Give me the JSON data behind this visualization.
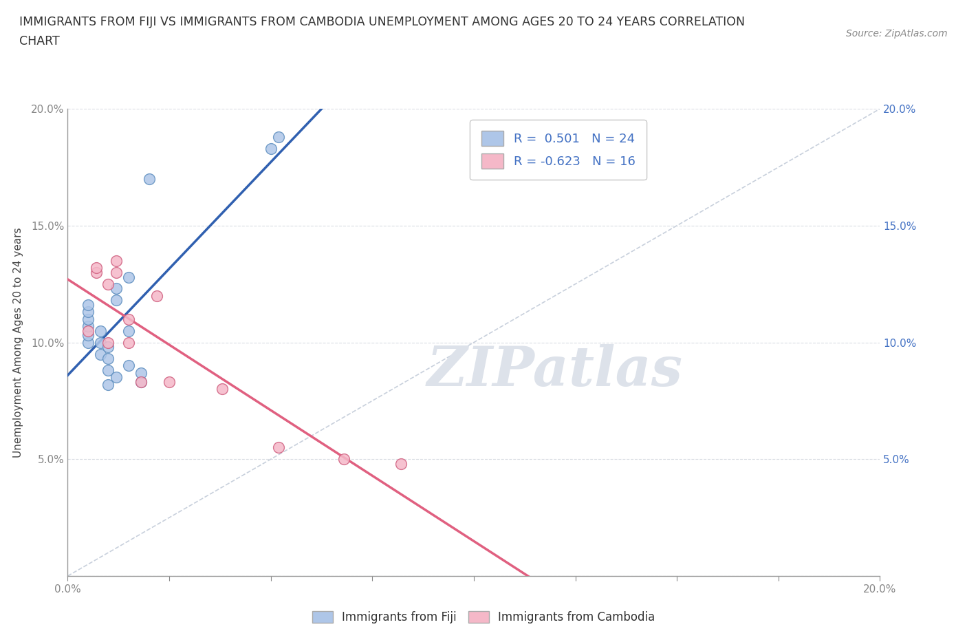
{
  "title_line1": "IMMIGRANTS FROM FIJI VS IMMIGRANTS FROM CAMBODIA UNEMPLOYMENT AMONG AGES 20 TO 24 YEARS CORRELATION",
  "title_line2": "CHART",
  "source": "Source: ZipAtlas.com",
  "ylabel": "Unemployment Among Ages 20 to 24 years",
  "xlim": [
    0.0,
    0.2
  ],
  "ylim": [
    0.0,
    0.2
  ],
  "xticks": [
    0.0,
    0.025,
    0.05,
    0.075,
    0.1,
    0.125,
    0.15,
    0.175,
    0.2
  ],
  "yticks": [
    0.0,
    0.05,
    0.1,
    0.15,
    0.2
  ],
  "fiji_color": "#aec6e8",
  "cambodia_color": "#f5b8c8",
  "fiji_edge": "#6090c0",
  "cambodia_edge": "#d06080",
  "trendline_fiji": "#3060b0",
  "trendline_cambodia": "#e06080",
  "diagonal_color": "#c8d0dc",
  "R_fiji": 0.501,
  "N_fiji": 24,
  "R_cambodia": -0.623,
  "N_cambodia": 16,
  "fiji_x": [
    0.005,
    0.005,
    0.005,
    0.005,
    0.005,
    0.005,
    0.008,
    0.008,
    0.008,
    0.01,
    0.01,
    0.01,
    0.01,
    0.012,
    0.012,
    0.012,
    0.015,
    0.015,
    0.015,
    0.018,
    0.018,
    0.02,
    0.05,
    0.052
  ],
  "fiji_y": [
    0.1,
    0.103,
    0.107,
    0.11,
    0.113,
    0.116,
    0.095,
    0.1,
    0.105,
    0.082,
    0.088,
    0.093,
    0.098,
    0.118,
    0.123,
    0.085,
    0.09,
    0.105,
    0.128,
    0.083,
    0.087,
    0.17,
    0.183,
    0.188
  ],
  "cambodia_x": [
    0.005,
    0.007,
    0.007,
    0.01,
    0.01,
    0.012,
    0.012,
    0.015,
    0.015,
    0.018,
    0.022,
    0.025,
    0.038,
    0.052,
    0.068,
    0.082
  ],
  "cambodia_y": [
    0.105,
    0.13,
    0.132,
    0.125,
    0.1,
    0.13,
    0.135,
    0.11,
    0.1,
    0.083,
    0.12,
    0.083,
    0.08,
    0.055,
    0.05,
    0.048
  ],
  "watermark": "ZIPatlas",
  "legend_label_fiji": "Immigrants from Fiji",
  "legend_label_cambodia": "Immigrants from Cambodia"
}
